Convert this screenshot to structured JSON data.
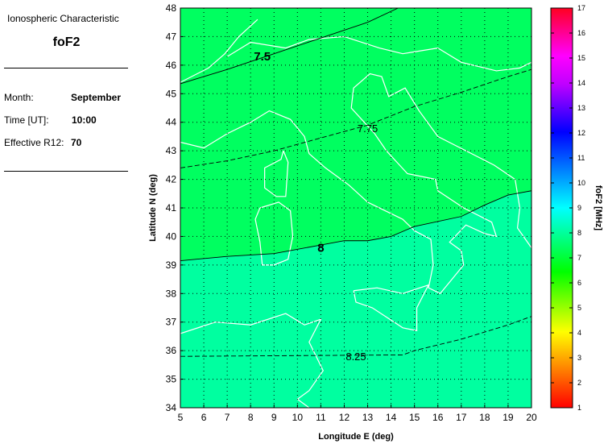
{
  "panel": {
    "heading": "Ionospheric Characteristic",
    "characteristic": "foF2",
    "fields": [
      {
        "label": "Month:",
        "value": "September"
      },
      {
        "label": "Time [UT]:",
        "value": "10:00"
      },
      {
        "label": "Effective R12:",
        "value": "70"
      }
    ]
  },
  "chart_data": {
    "type": "heatmap",
    "xlabel": "Longitude E (deg)",
    "ylabel": "Latitude N (deg)",
    "xlim": [
      5,
      20
    ],
    "ylim": [
      34,
      48
    ],
    "xticks": [
      5,
      6,
      7,
      8,
      9,
      10,
      11,
      12,
      13,
      14,
      15,
      16,
      17,
      18,
      19,
      20
    ],
    "yticks": [
      34,
      35,
      36,
      37,
      38,
      39,
      40,
      41,
      42,
      43,
      44,
      45,
      46,
      47,
      48
    ],
    "grid": true,
    "colorbar": {
      "label": "foF2 [MHz]",
      "range": [
        1,
        17
      ],
      "ticks": [
        1,
        2,
        3,
        4,
        5,
        6,
        7,
        8,
        9,
        10,
        11,
        12,
        13,
        14,
        15,
        16,
        17
      ],
      "colormap": "red-yellow-green-cyan-blue-magenta-red"
    },
    "fill_colors": {
      "below_8": "#00ff60",
      "above_8": "#00ffa0"
    },
    "contours": [
      {
        "level": "7.5",
        "style": "solid",
        "points": [
          [
            5,
            45.35
          ],
          [
            7,
            45.85
          ],
          [
            9,
            46.4
          ],
          [
            11,
            46.95
          ],
          [
            13,
            47.5
          ],
          [
            14.3,
            48
          ]
        ]
      },
      {
        "level": "7.75",
        "style": "dashed",
        "points": [
          [
            5,
            42.4
          ],
          [
            7,
            42.65
          ],
          [
            9,
            43.0
          ],
          [
            11,
            43.45
          ],
          [
            13,
            43.9
          ],
          [
            15,
            44.55
          ],
          [
            17,
            45.05
          ],
          [
            19,
            45.6
          ],
          [
            20,
            45.85
          ]
        ]
      },
      {
        "level": "8",
        "style": "solid",
        "points": [
          [
            5,
            39.15
          ],
          [
            7,
            39.3
          ],
          [
            9,
            39.4
          ],
          [
            11,
            39.7
          ],
          [
            12,
            39.85
          ],
          [
            13,
            39.85
          ],
          [
            14,
            40.0
          ],
          [
            15,
            40.35
          ],
          [
            17,
            40.7
          ],
          [
            18,
            41.1
          ],
          [
            19,
            41.45
          ],
          [
            20,
            41.6
          ]
        ]
      },
      {
        "level": "8.25",
        "style": "dashed",
        "points": [
          [
            5,
            35.8
          ],
          [
            14.5,
            35.85
          ],
          [
            15,
            36.0
          ],
          [
            17,
            36.4
          ],
          [
            19,
            36.9
          ],
          [
            20,
            37.2
          ]
        ]
      }
    ],
    "contour_labels": [
      {
        "text": "7.5",
        "at": [
          8.5,
          46.3
        ]
      },
      {
        "text": "7.75",
        "at": [
          13,
          43.8
        ]
      },
      {
        "text": "8",
        "at": [
          11,
          39.6
        ]
      },
      {
        "text": "8.25",
        "at": [
          12.5,
          35.8
        ]
      }
    ]
  }
}
